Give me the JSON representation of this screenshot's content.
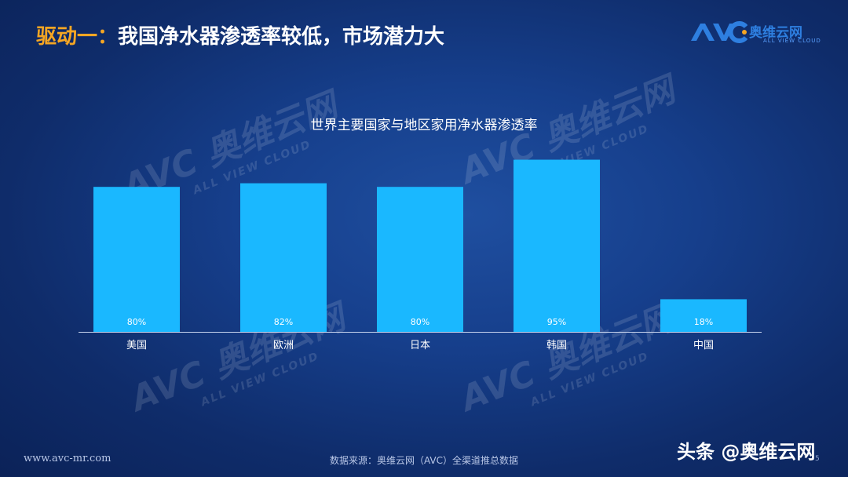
{
  "header": {
    "title_highlight": "驱动一：",
    "title_rest": "我国净水器渗透率较低，市场潜力大",
    "logo_text": "奥维云网",
    "logo_sub": "ALL VIEW CLOUD"
  },
  "watermark": {
    "brand": "AVC 奥维云网",
    "sub": "ALL VIEW CLOUD"
  },
  "chart_data": {
    "type": "bar",
    "title": "世界主要国家与地区家用净水器渗透率",
    "categories": [
      "美国",
      "欧洲",
      "日本",
      "韩国",
      "中国"
    ],
    "values": [
      80,
      82,
      80,
      95,
      18
    ],
    "value_labels": [
      "80%",
      "82%",
      "80%",
      "95%",
      "18%"
    ],
    "bar_color": "#1ab8ff",
    "ylim": [
      0,
      100
    ],
    "grid": false
  },
  "footer": {
    "website": "www.avc-mr.com",
    "source": "数据来源：奥维云网（AVC）全渠道推总数据",
    "page": "5",
    "brand_watermark": "头条 @奥维云网"
  }
}
